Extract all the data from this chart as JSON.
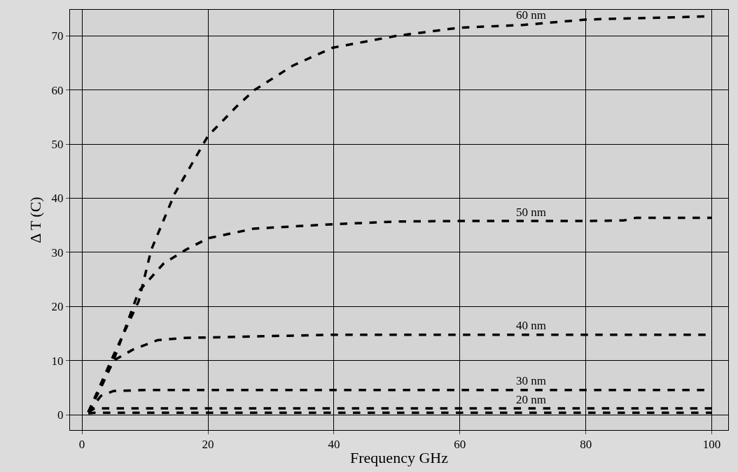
{
  "chart_data": {
    "type": "line",
    "xlabel": "Frequency GHz",
    "ylabel": "Δ T (C)",
    "xlim": [
      -1.9,
      102.6
    ],
    "ylim": [
      -2.8,
      74.8
    ],
    "xticks": [
      0,
      20,
      40,
      60,
      80,
      100
    ],
    "yticks": [
      0,
      10,
      20,
      30,
      40,
      50,
      60,
      70
    ],
    "grid": true,
    "legend": false,
    "marker": "none",
    "line_style": "dashed",
    "series": [
      {
        "name": "60 nm",
        "color": "#000000",
        "x": [
          1,
          5,
          9,
          11,
          14.7,
          20,
          24.6,
          27.4,
          33.5,
          39.8,
          50,
          60,
          70,
          80,
          90,
          100
        ],
        "values": [
          0.5,
          11,
          21,
          30.5,
          40.8,
          51.5,
          57,
          60,
          64.5,
          67.8,
          70,
          71.5,
          72,
          73,
          73.3,
          73.6
        ]
      },
      {
        "name": "50 nm",
        "color": "#000000",
        "x": [
          1,
          5,
          9,
          13,
          16.5,
          20,
          27.3,
          39.8,
          50,
          60,
          80,
          86,
          88,
          100
        ],
        "values": [
          0.5,
          10,
          22.8,
          28,
          30.5,
          32.6,
          34.4,
          35.2,
          35.7,
          35.8,
          35.8,
          35.9,
          36.4,
          36.4
        ]
      },
      {
        "name": "40 nm",
        "color": "#000000",
        "x": [
          1,
          3,
          5,
          8,
          12,
          16,
          20,
          40,
          100
        ],
        "values": [
          0.5,
          5,
          10,
          12,
          13.8,
          14.2,
          14.3,
          14.8,
          14.8
        ]
      },
      {
        "name": "30 nm",
        "color": "#000000",
        "x": [
          1,
          3,
          5,
          10,
          100
        ],
        "values": [
          0.5,
          3.5,
          4.4,
          4.6,
          4.6
        ]
      },
      {
        "name": "20 nm",
        "color": "#000000",
        "x": [
          1,
          2,
          100
        ],
        "values": [
          0.5,
          1.2,
          1.2
        ]
      },
      {
        "color": "#000000",
        "x": [
          1,
          2,
          100
        ],
        "values": [
          0.3,
          0.4,
          0.4
        ]
      }
    ]
  }
}
